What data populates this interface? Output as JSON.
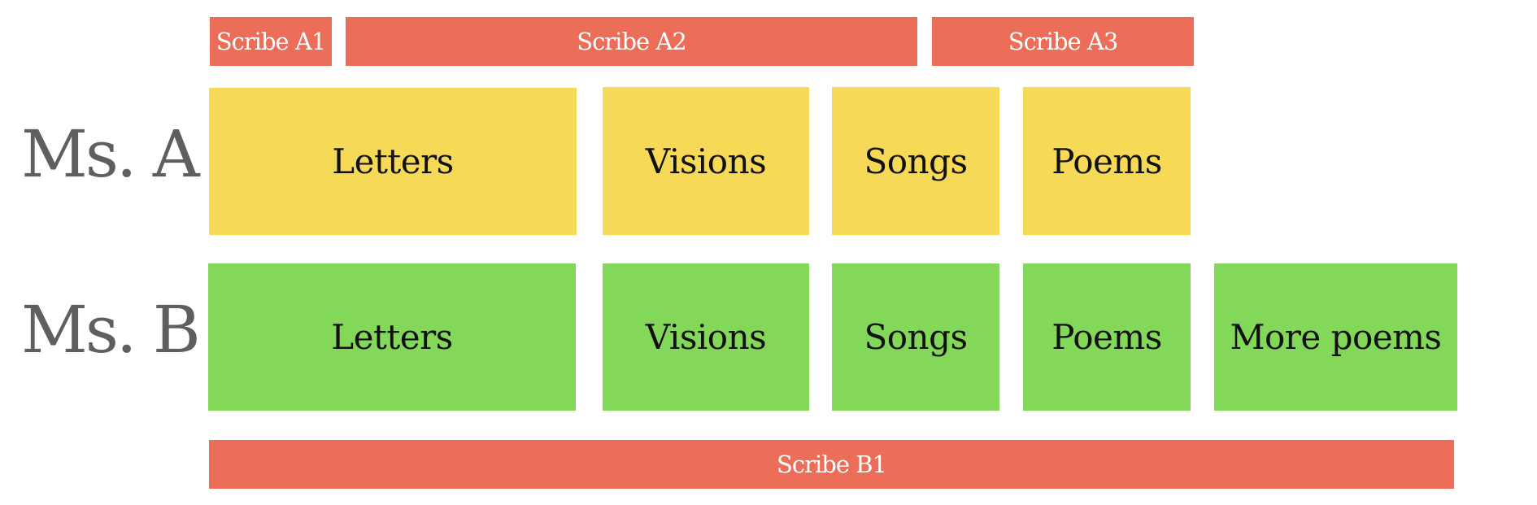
{
  "rows": {
    "ms_a": {
      "label": "Ms. A",
      "scribes": [
        "Scribe A1",
        "Scribe A2",
        "Scribe A3"
      ],
      "sections": [
        "Letters",
        "Visions",
        "Songs",
        "Poems"
      ]
    },
    "ms_b": {
      "label": "Ms. B",
      "scribes": [
        "Scribe B1"
      ],
      "sections": [
        "Letters",
        "Visions",
        "Songs",
        "Poems",
        "More poems"
      ]
    }
  },
  "colors": {
    "scribe": "#ec6e58",
    "ms_a_section": "#f6d956",
    "ms_b_section": "#83d759",
    "row_label": "#5f5f5f",
    "scribe_text": "#ffffff",
    "section_text": "#111111"
  }
}
